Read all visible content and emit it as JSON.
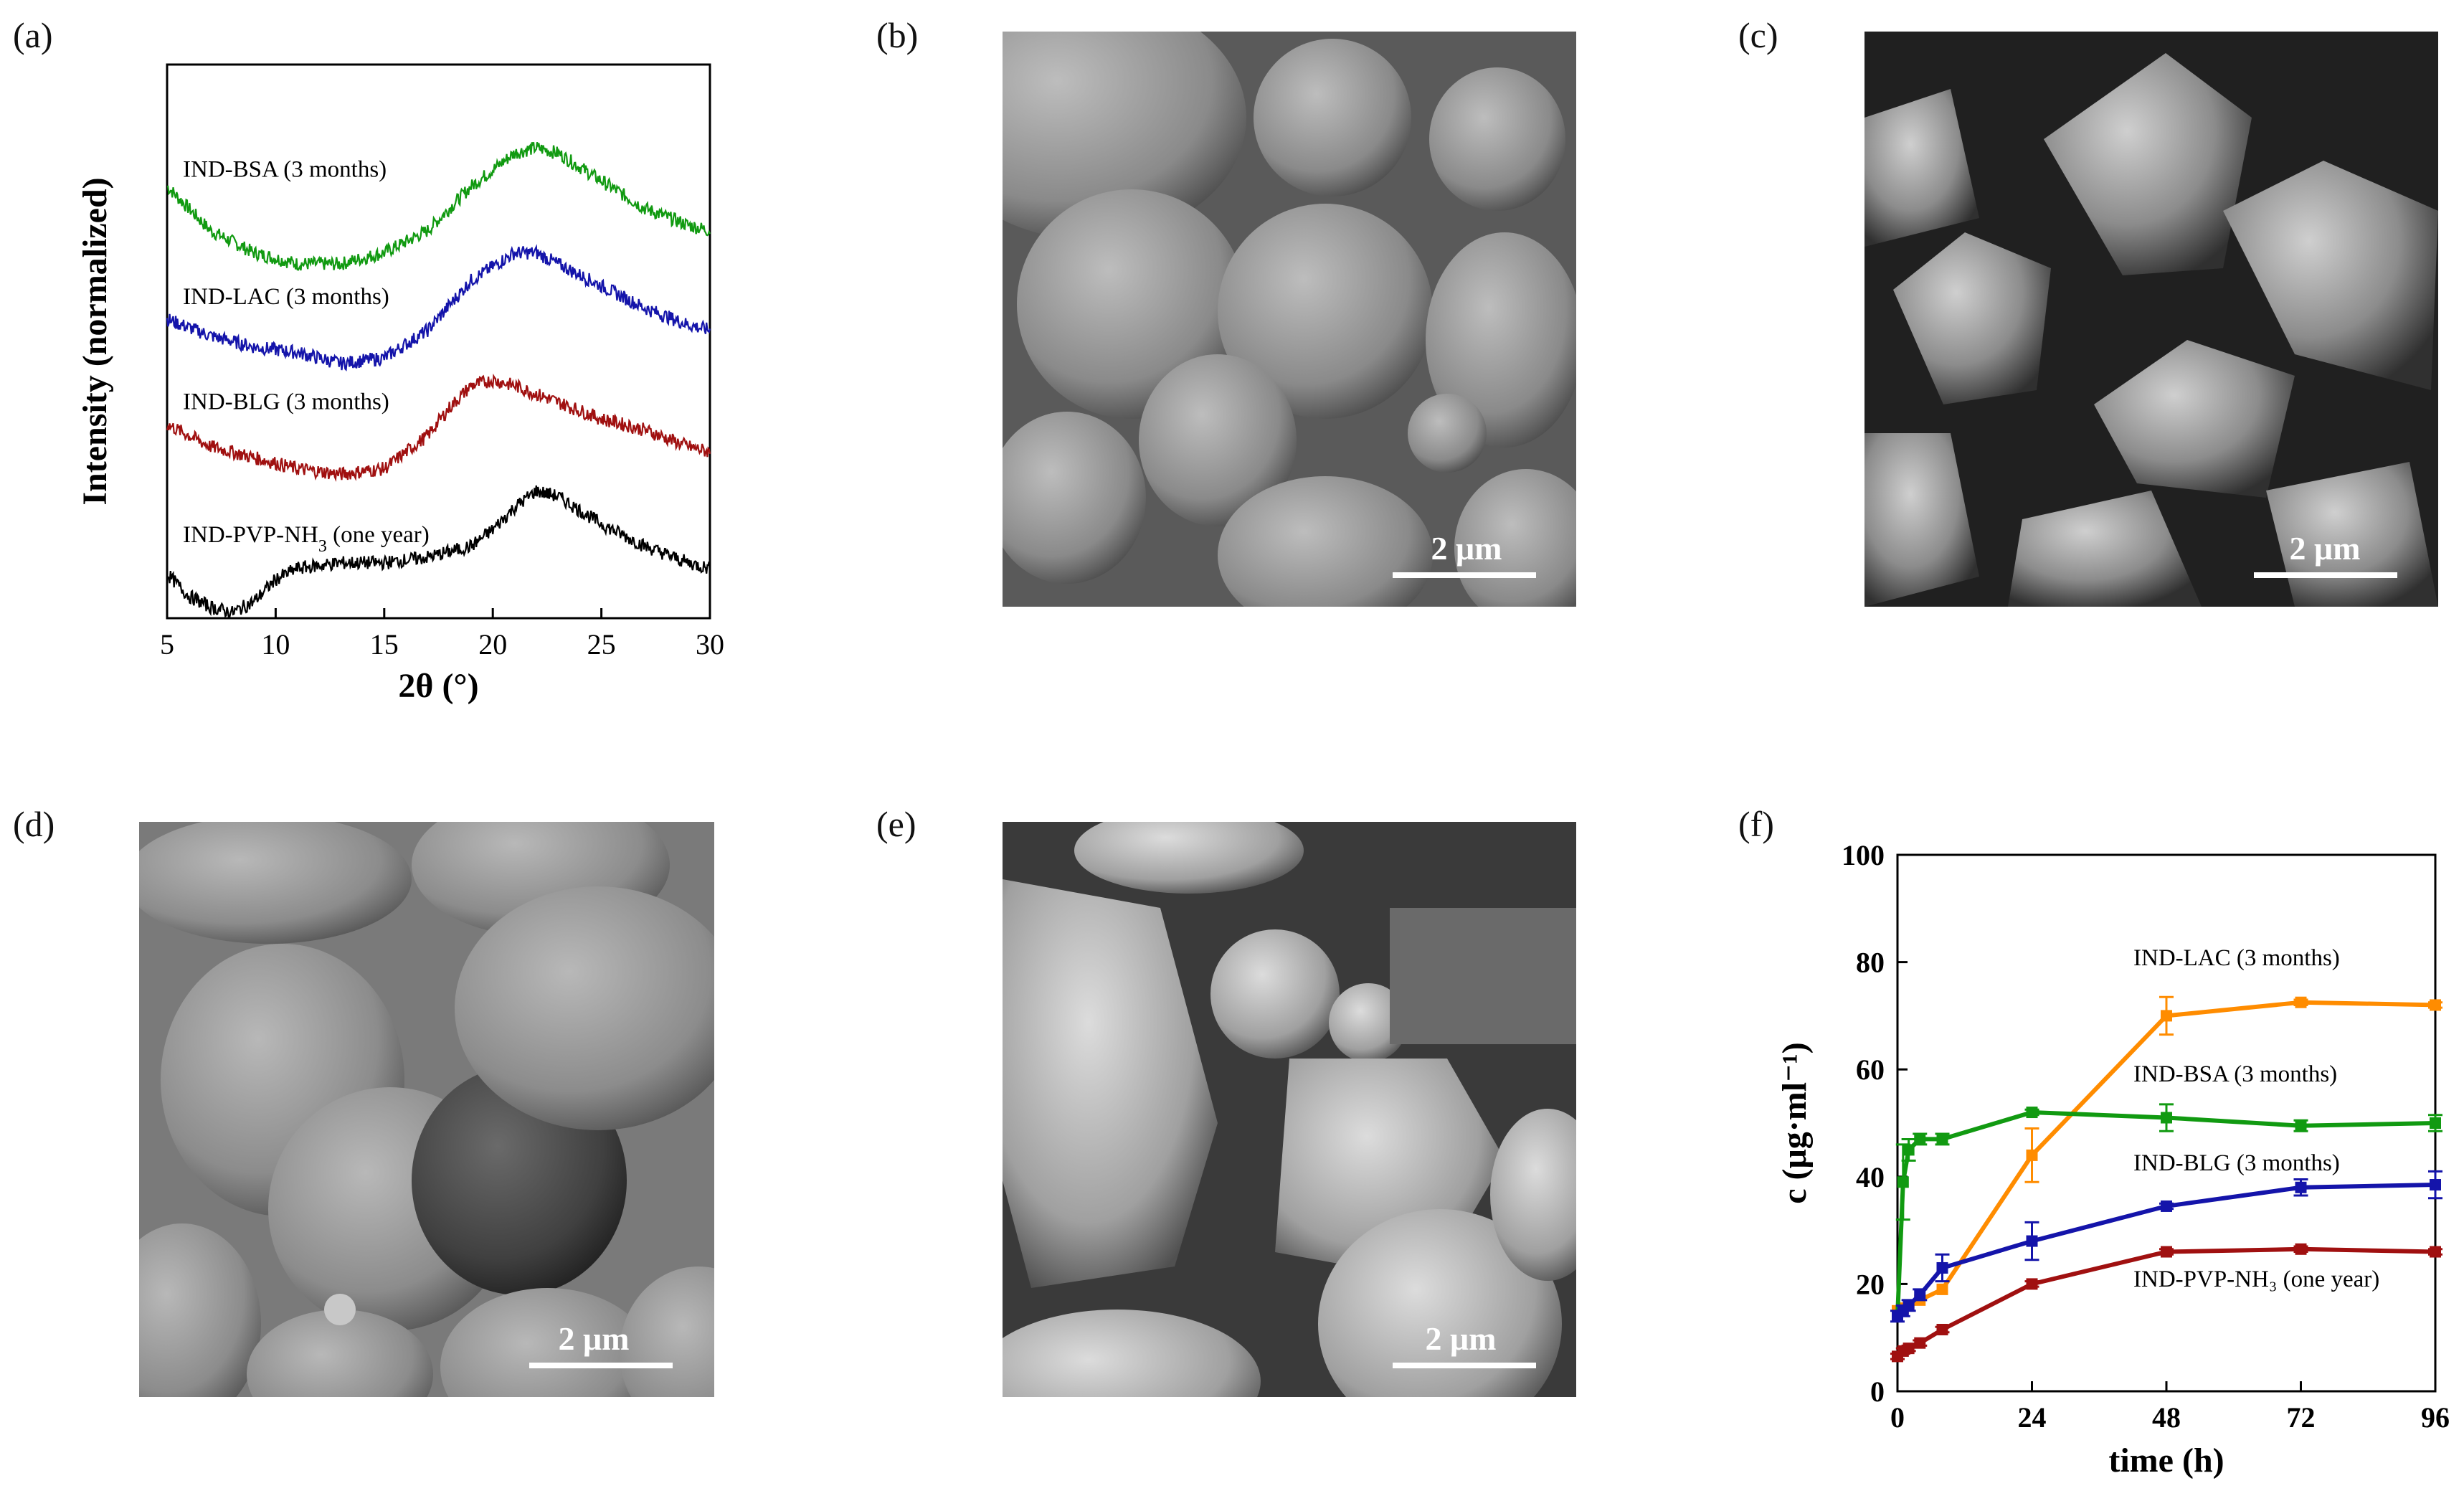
{
  "panels": {
    "a": {
      "label": "(a)"
    },
    "b": {
      "label": "(b)",
      "scale": "2 μm"
    },
    "c": {
      "label": "(c)",
      "scale": "2 μm"
    },
    "d": {
      "label": "(d)",
      "scale": "2 μm"
    },
    "e": {
      "label": "(e)",
      "scale": "2 μm"
    },
    "f": {
      "label": "(f)"
    }
  },
  "chart_data": [
    {
      "type": "line",
      "panel": "a",
      "xlabel": "2θ (°)",
      "ylabel": "Intensity (normalized)",
      "xlim": [
        5,
        30
      ],
      "xticks": [
        5,
        10,
        15,
        20,
        25,
        30
      ],
      "series": [
        {
          "name": "IND-BSA (3 months)",
          "color": "#119a11",
          "x": [
            5,
            7,
            9,
            11,
            13,
            15,
            17,
            19,
            21,
            22,
            23,
            25,
            27,
            29,
            30
          ],
          "y": [
            0.78,
            0.7,
            0.66,
            0.64,
            0.64,
            0.66,
            0.7,
            0.78,
            0.84,
            0.85,
            0.84,
            0.79,
            0.74,
            0.71,
            0.7
          ]
        },
        {
          "name": "IND-LAC (3 months)",
          "color": "#1414aa",
          "x": [
            5,
            7,
            9,
            11,
            13,
            15,
            17,
            19,
            21,
            22,
            23,
            25,
            27,
            29,
            30
          ],
          "y": [
            0.54,
            0.51,
            0.49,
            0.48,
            0.46,
            0.47,
            0.52,
            0.61,
            0.66,
            0.66,
            0.64,
            0.6,
            0.56,
            0.53,
            0.52
          ]
        },
        {
          "name": "IND-BLG (3 months)",
          "color": "#a01010",
          "x": [
            5,
            7,
            9,
            11,
            13,
            15,
            17,
            18,
            19,
            20,
            21,
            23,
            25,
            27,
            29,
            30
          ],
          "y": [
            0.35,
            0.31,
            0.29,
            0.27,
            0.26,
            0.27,
            0.33,
            0.38,
            0.42,
            0.43,
            0.42,
            0.39,
            0.36,
            0.34,
            0.31,
            0.3
          ]
        },
        {
          "name": "IND-PVP-NH3 (one year)",
          "color": "#000000",
          "x": [
            5,
            6,
            7,
            8,
            9,
            10,
            11,
            13,
            15,
            17,
            19,
            20,
            21,
            22,
            23,
            25,
            27,
            29,
            30
          ],
          "y": [
            0.08,
            0.04,
            0.02,
            0.01,
            0.03,
            0.07,
            0.09,
            0.1,
            0.1,
            0.11,
            0.13,
            0.16,
            0.2,
            0.23,
            0.22,
            0.17,
            0.13,
            0.1,
            0.09
          ]
        }
      ]
    },
    {
      "type": "line",
      "panel": "f",
      "xlabel": "time (h)",
      "ylabel": "c (μg·ml⁻¹)",
      "xlim": [
        0,
        96
      ],
      "ylim": [
        0,
        100
      ],
      "xticks": [
        0,
        24,
        48,
        72,
        96
      ],
      "yticks": [
        0,
        20,
        40,
        60,
        80,
        100
      ],
      "series": [
        {
          "name": "IND-LAC (3 months)",
          "color": "#ff8c00",
          "x": [
            0,
            1,
            2,
            4,
            8,
            24,
            48,
            72,
            96
          ],
          "y": [
            15,
            15.5,
            16,
            17,
            19,
            44,
            70,
            72.5,
            72
          ],
          "err": [
            0,
            0,
            0,
            0,
            0,
            5,
            3.5,
            0.5,
            0.5
          ]
        },
        {
          "name": "IND-BSA (3 months)",
          "color": "#119a11",
          "x": [
            0,
            1,
            2,
            4,
            8,
            24,
            48,
            72,
            96
          ],
          "y": [
            14,
            39,
            45,
            47,
            47,
            52,
            51,
            49.5,
            50
          ],
          "err": [
            0,
            7,
            2,
            1,
            1,
            0.5,
            2.5,
            1,
            1.5
          ]
        },
        {
          "name": "IND-BLG (3 months)",
          "color": "#1414aa",
          "x": [
            0,
            1,
            2,
            4,
            8,
            24,
            48,
            72,
            96
          ],
          "y": [
            14,
            15,
            16,
            18,
            23,
            28,
            34.5,
            38,
            38.5
          ],
          "err": [
            1,
            1,
            1,
            1,
            2.5,
            3.5,
            0.5,
            1.5,
            2.5
          ]
        },
        {
          "name": "IND-PVP-NH₃ (one year)",
          "color": "#a01010",
          "x": [
            0,
            1,
            2,
            4,
            8,
            24,
            48,
            72,
            96
          ],
          "y": [
            6.5,
            7.5,
            8,
            9,
            11.5,
            20,
            26,
            26.5,
            26
          ],
          "err": [
            0.5,
            0.5,
            0.5,
            0.5,
            0.5,
            0.5,
            0.5,
            0.5,
            0.5
          ]
        }
      ]
    }
  ]
}
